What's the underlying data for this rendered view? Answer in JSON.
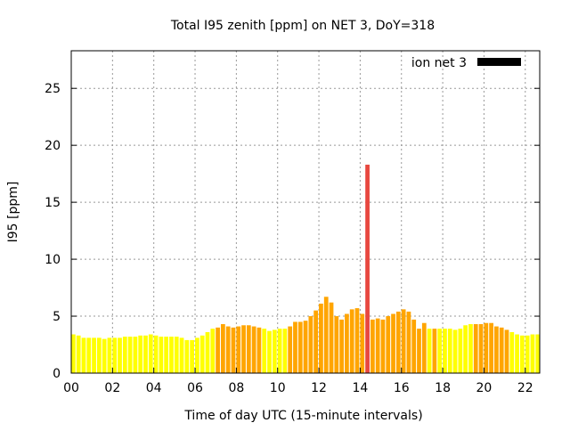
{
  "chart_data": {
    "type": "bar",
    "title": "Total I95 zenith [ppm] on NET 3, DoY=318",
    "xlabel": "Time of day UTC (15-minute intervals)",
    "ylabel": "I95 [ppm]",
    "xlim": [
      0,
      22.7
    ],
    "ylim": [
      0,
      28.3
    ],
    "grid": true,
    "legend": {
      "label": "ion net 3",
      "placement": "top-right",
      "color": "#000000"
    },
    "xticks": [
      {
        "value": 0,
        "label": "00"
      },
      {
        "value": 2,
        "label": "02"
      },
      {
        "value": 4,
        "label": "04"
      },
      {
        "value": 6,
        "label": "06"
      },
      {
        "value": 8,
        "label": "08"
      },
      {
        "value": 10,
        "label": "10"
      },
      {
        "value": 12,
        "label": "12"
      },
      {
        "value": 14,
        "label": "14"
      },
      {
        "value": 16,
        "label": "16"
      },
      {
        "value": 18,
        "label": "18"
      },
      {
        "value": 20,
        "label": "20"
      },
      {
        "value": 22,
        "label": "22"
      }
    ],
    "yticks": [
      {
        "value": 0,
        "label": "0"
      },
      {
        "value": 5,
        "label": "5"
      },
      {
        "value": 10,
        "label": "10"
      },
      {
        "value": 15,
        "label": "15"
      },
      {
        "value": 20,
        "label": "20"
      },
      {
        "value": 25,
        "label": "25"
      }
    ],
    "interval_hours": 0.25,
    "colors": {
      "y": "#ffff00",
      "o": "#ffa500",
      "r": "#e8473f"
    },
    "values": [
      3.4,
      3.3,
      3.1,
      3.1,
      3.1,
      3.1,
      3.0,
      3.1,
      3.1,
      3.1,
      3.2,
      3.2,
      3.2,
      3.3,
      3.3,
      3.4,
      3.3,
      3.2,
      3.2,
      3.2,
      3.2,
      3.1,
      2.9,
      2.9,
      3.1,
      3.3,
      3.6,
      3.9,
      4.0,
      4.3,
      4.1,
      4.0,
      4.1,
      4.2,
      4.2,
      4.1,
      4.0,
      3.9,
      3.7,
      3.8,
      3.9,
      3.9,
      4.1,
      4.5,
      4.5,
      4.6,
      5.0,
      5.5,
      6.1,
      6.7,
      6.2,
      5.0,
      4.7,
      5.2,
      5.6,
      5.7,
      5.2,
      18.3,
      4.7,
      4.8,
      4.7,
      5.0,
      5.2,
      5.4,
      5.6,
      5.4,
      4.7,
      3.9,
      4.4,
      3.9,
      3.9,
      3.9,
      3.9,
      3.9,
      3.8,
      3.9,
      4.2,
      4.3,
      4.3,
      4.3,
      4.4,
      4.4,
      4.1,
      4.0,
      3.8,
      3.6,
      3.4,
      3.3,
      3.3,
      3.4,
      3.4
    ],
    "levels": "yyyyyyyyyyyyyyyyyyyyyyyyyyyyoooooooooyyyyyoooooooooooooooroooooooooooyoyyyyyyyoooooooyyyyyyyy"
  }
}
